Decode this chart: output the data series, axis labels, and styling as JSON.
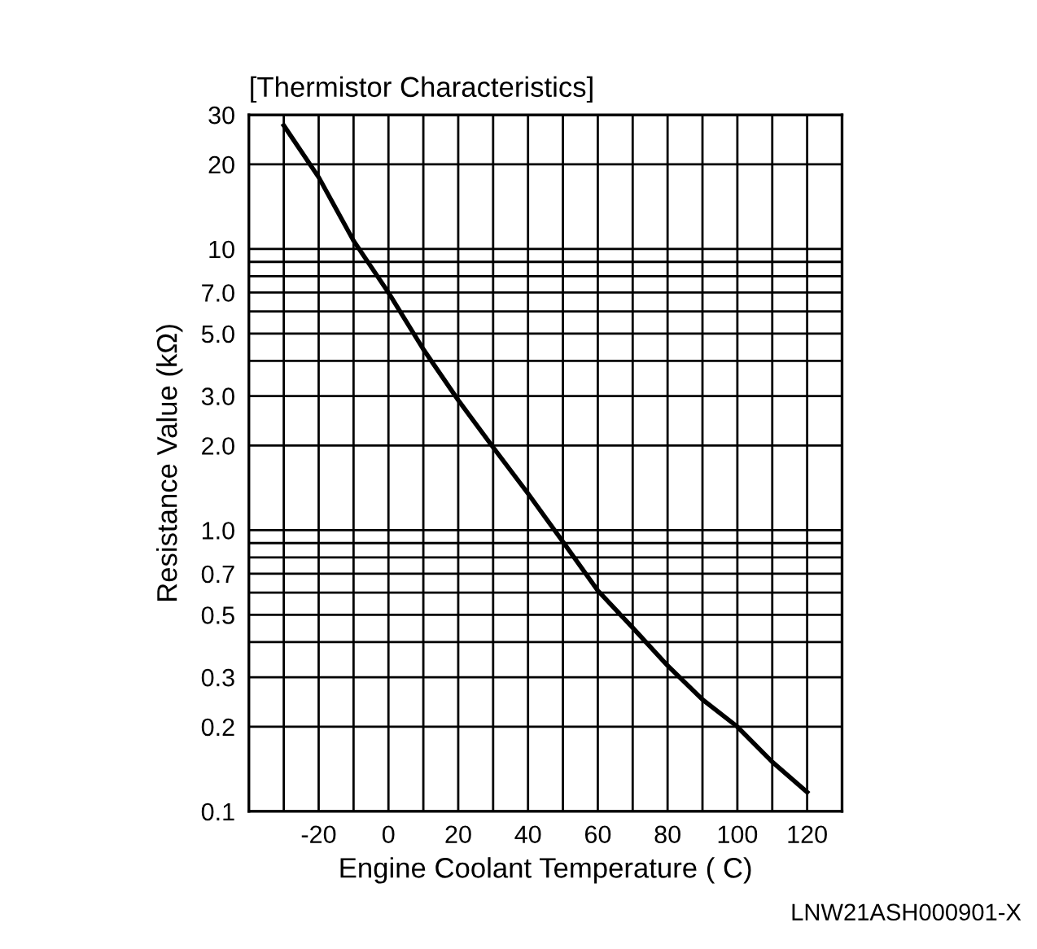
{
  "chart_data": {
    "type": "line",
    "title": "[Thermistor Characteristics]",
    "xlabel": "Engine Coolant Temperature ( C)",
    "ylabel": "Resistance Value (kΩ)",
    "x": [
      -30,
      -20,
      -10,
      0,
      10,
      20,
      30,
      40,
      50,
      60,
      70,
      80,
      90,
      100,
      110,
      120
    ],
    "series": [
      {
        "color": "#000000",
        "values": [
          27.5,
          18,
          10.7,
          7.0,
          4.4,
          2.9,
          1.97,
          1.35,
          0.91,
          0.61,
          0.45,
          0.33,
          0.25,
          0.2,
          0.15,
          0.117
        ]
      }
    ],
    "log": "y",
    "xlim": [
      -40,
      130
    ],
    "ylim": [
      0.1,
      30
    ],
    "xticks": [
      {
        "value": -30,
        "label": null
      },
      -20,
      {
        "value": -10,
        "label": null
      },
      0,
      {
        "value": 10,
        "label": null
      },
      20,
      {
        "value": 30,
        "label": null
      },
      40,
      {
        "value": 50,
        "label": null
      },
      60,
      {
        "value": 70,
        "label": null
      },
      80,
      {
        "value": 90,
        "label": null
      },
      100,
      {
        "value": 110,
        "label": null
      },
      120
    ],
    "yticks": [
      0.1,
      0.2,
      0.3,
      {
        "value": 0.4,
        "label": null
      },
      0.5,
      {
        "value": 0.6,
        "label": null
      },
      0.7,
      {
        "value": 0.8,
        "label": null
      },
      {
        "value": 0.9,
        "label": null
      },
      {
        "value": 1,
        "label": "1.0"
      },
      {
        "value": 2,
        "label": "2.0"
      },
      {
        "value": 3,
        "label": "3.0"
      },
      {
        "value": 4,
        "label": null
      },
      {
        "value": 5,
        "label": "5.0"
      },
      {
        "value": 6,
        "label": null
      },
      {
        "value": 7,
        "label": "7.0"
      },
      {
        "value": 8,
        "label": null
      },
      {
        "value": 9,
        "label": null
      },
      10,
      20,
      30
    ],
    "grid": true,
    "marker": "none",
    "line_style": "solid",
    "annotations": [
      "LNW21ASH000901-X"
    ]
  }
}
